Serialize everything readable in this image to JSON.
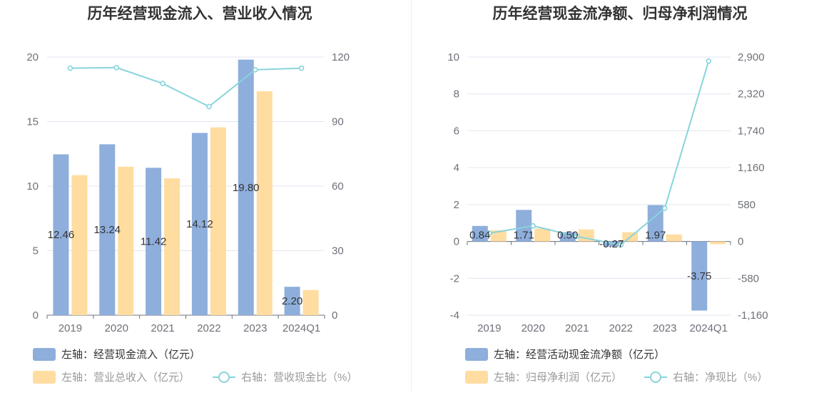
{
  "colors": {
    "bar_primary": "#8eaedc",
    "bar_secondary": "#ffdca0",
    "line": "#88d4dc",
    "grid": "#e0e6f1",
    "axis": "#6e7079"
  },
  "chart_data": [
    {
      "type": "bar",
      "title": "历年经营现金流入、营业收入情况",
      "categories": [
        "2019",
        "2020",
        "2021",
        "2022",
        "2023",
        "2024Q1"
      ],
      "y_left": {
        "ticks": [
          "0",
          "5",
          "10",
          "15",
          "20"
        ],
        "ylim": [
          0,
          20
        ]
      },
      "y_right": {
        "ticks": [
          "0",
          "30",
          "60",
          "90",
          "120"
        ],
        "ylim": [
          0,
          120
        ]
      },
      "series": [
        {
          "name": "左轴：经营现金流入（亿元）",
          "type": "bar",
          "axis": "left",
          "values": [
            12.46,
            13.24,
            11.42,
            14.12,
            19.8,
            2.2
          ],
          "labels": [
            "12.46",
            "13.24",
            "11.42",
            "14.12",
            "19.80",
            "2.20"
          ]
        },
        {
          "name": "左轴：营业总收入（亿元）",
          "type": "bar",
          "axis": "left",
          "values": [
            10.85,
            11.5,
            10.6,
            14.55,
            17.35,
            1.95
          ]
        },
        {
          "name": "右轴：营收现金比（%）",
          "type": "line",
          "axis": "right",
          "values": [
            114.8,
            115.1,
            107.7,
            97.0,
            114.1,
            114.8
          ]
        }
      ],
      "grid": true,
      "legend_position": "bottom-left"
    },
    {
      "type": "bar",
      "title": "历年经营现金流净额、归母净利润情况",
      "categories": [
        "2019",
        "2020",
        "2021",
        "2022",
        "2023",
        "2024Q1"
      ],
      "y_left": {
        "ticks": [
          "-4",
          "-2",
          "0",
          "2",
          "4",
          "6",
          "8",
          "10"
        ],
        "ylim": [
          -4,
          10
        ]
      },
      "y_right": {
        "ticks": [
          "-1,160",
          "-580",
          "0",
          "580",
          "1,160",
          "1,740",
          "2,320",
          "2,900"
        ],
        "ylim": [
          -1160,
          2900
        ]
      },
      "series": [
        {
          "name": "左轴：经营活动现金流净额（亿元）",
          "type": "bar",
          "axis": "left",
          "values": [
            0.84,
            1.71,
            0.5,
            -0.27,
            1.97,
            -3.75
          ],
          "labels": [
            "0.84",
            "1.71",
            "0.50",
            "-0.27",
            "1.97",
            "-3.75"
          ]
        },
        {
          "name": "左轴：归母净利润（亿元）",
          "type": "bar",
          "axis": "left",
          "values": [
            0.6,
            0.7,
            0.65,
            0.5,
            0.38,
            -0.15
          ]
        },
        {
          "name": "右轴：净现比（%）",
          "type": "line",
          "axis": "right",
          "values": [
            130,
            245,
            77,
            -54,
            520,
            2835
          ]
        }
      ],
      "grid": true,
      "legend_position": "bottom-left"
    }
  ]
}
